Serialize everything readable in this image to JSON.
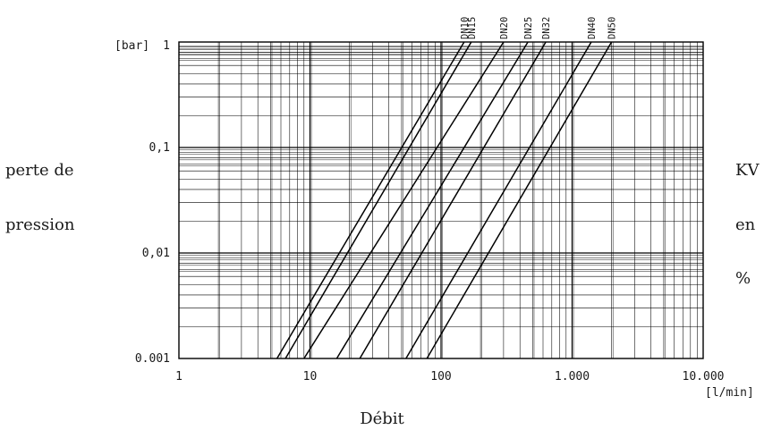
{
  "chart_data": {
    "type": "line",
    "x_scale": "log",
    "y_scale": "log",
    "xlim": [
      1,
      10000
    ],
    "ylim": [
      0.001,
      1
    ],
    "grid": true,
    "x_tick_labels": [
      "1",
      "10",
      "100",
      "1.000",
      "10.000"
    ],
    "y_tick_labels": [
      "0.001",
      "0,01",
      "0,1",
      "1"
    ],
    "x_unit": "[l/min]",
    "y_unit": "[bar]",
    "xlabel": "Débit",
    "ylabel": "perte de pression",
    "right_label": "KV en %",
    "series": [
      {
        "name": "DN10",
        "points": [
          [
            5.6,
            0.001
          ],
          [
            150,
            1
          ]
        ]
      },
      {
        "name": "DN15",
        "points": [
          [
            6.5,
            0.001
          ],
          [
            170,
            1
          ]
        ]
      },
      {
        "name": "DN20",
        "points": [
          [
            9,
            0.001
          ],
          [
            300,
            1
          ]
        ]
      },
      {
        "name": "DN25",
        "points": [
          [
            16,
            0.001
          ],
          [
            460,
            1
          ]
        ]
      },
      {
        "name": "DN32",
        "points": [
          [
            24,
            0.001
          ],
          [
            630,
            1
          ]
        ]
      },
      {
        "name": "DN40",
        "points": [
          [
            54,
            0.001
          ],
          [
            1400,
            1
          ]
        ]
      },
      {
        "name": "DN50",
        "points": [
          [
            78,
            0.001
          ],
          [
            2000,
            1
          ]
        ]
      }
    ]
  },
  "labels": {
    "y_left_1": "perte de",
    "y_left_2": "pression",
    "y_right_1": "KV",
    "y_right_2": "en",
    "y_right_3": "%",
    "x_axis": "Débit",
    "x_unit": "[l/min]",
    "y_unit": "[bar]"
  },
  "colors": {
    "line": "#000000",
    "grid": "#000000",
    "text": "#1a1a1a",
    "background": "#ffffff"
  }
}
